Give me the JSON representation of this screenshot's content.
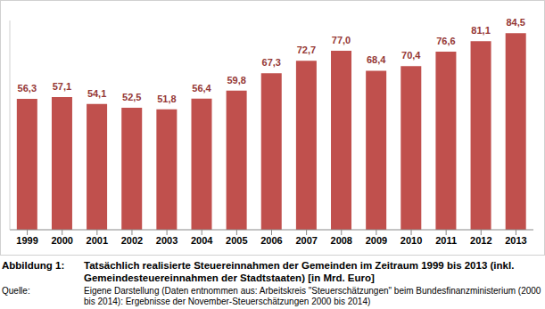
{
  "chart_data": {
    "type": "bar",
    "title": "Tatsächlich realisierte Steuereinnahmen der Gemeinden im Zeitraum 1999 bis 2013 (inkl. Gemeindesteuereinnahmen der Stadtstaaten) [in Mrd. Euro]",
    "figure_label": "Abbildung 1:",
    "source_label": "Quelle:",
    "source": "Eigene Darstellung (Daten entnommen aus: Arbeitskreis \"Steuerschätzungen\" beim Bundesfinanzministerium (2000 bis 2014): Ergebnisse der November-Steuerschätzungen 2000 bis 2014)",
    "categories": [
      "1999",
      "2000",
      "2001",
      "2002",
      "2003",
      "2004",
      "2005",
      "2006",
      "2007",
      "2008",
      "2009",
      "2010",
      "2011",
      "2012",
      "2013"
    ],
    "values": [
      56.3,
      57.1,
      54.1,
      52.5,
      51.8,
      56.4,
      59.8,
      67.3,
      72.7,
      77.0,
      68.4,
      70.4,
      76.6,
      81.1,
      84.5
    ],
    "value_labels": [
      "56,3",
      "57,1",
      "54,1",
      "52,5",
      "51,8",
      "56,4",
      "59,8",
      "67,3",
      "72,7",
      "77,0",
      "68,4",
      "70,4",
      "76,6",
      "81,1",
      "84,5"
    ],
    "color": "#c0504d",
    "ylim": [
      0,
      90
    ],
    "data_labels": true,
    "tick_labels": "x",
    "grid": false
  }
}
